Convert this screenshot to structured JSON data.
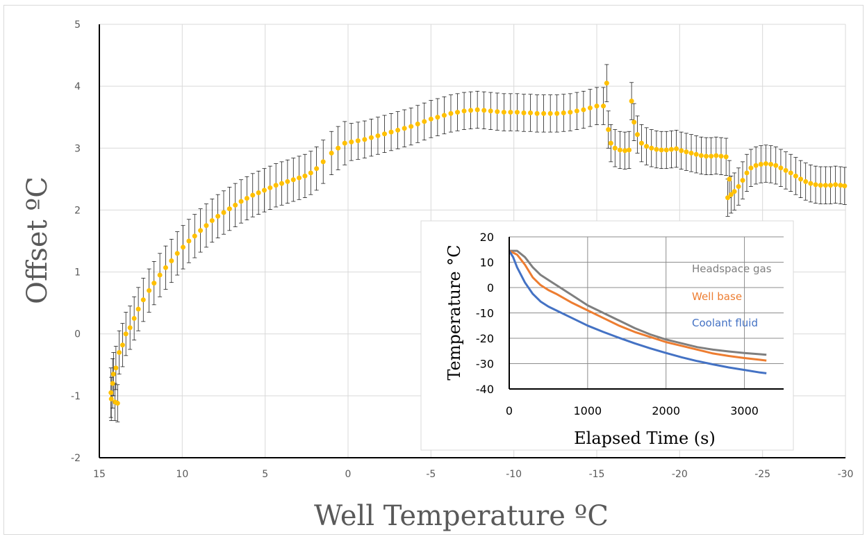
{
  "chart_data": [
    {
      "type": "scatter",
      "xlabel": "Well Temperature ºC",
      "ylabel": "Offset ºC",
      "xlim": [
        15,
        -30
      ],
      "ylim": [
        -2,
        5
      ],
      "x_ticks": [
        "15",
        "10",
        "5",
        "0",
        "-5",
        "-10",
        "-15",
        "-20",
        "-25",
        "-30"
      ],
      "y_ticks": [
        "5",
        "4",
        "3",
        "2",
        "1",
        "0",
        "-1",
        "-2"
      ],
      "grid": true,
      "colors": {
        "marker": "#ffc000",
        "error_bar": "#000000",
        "grid": "#d9d9d9"
      },
      "series": [
        {
          "points": [
            [
              14.3,
              -0.95,
              0.4
            ],
            [
              14.28,
              -1.05,
              0.35
            ],
            [
              14.2,
              -0.8,
              0.4
            ],
            [
              14.15,
              -0.65,
              0.35
            ],
            [
              14.05,
              -1.1,
              0.3
            ],
            [
              14.0,
              -0.55,
              0.35
            ],
            [
              13.9,
              -1.12,
              0.3
            ],
            [
              13.8,
              -0.3,
              0.35
            ],
            [
              13.6,
              -0.18,
              0.35
            ],
            [
              13.4,
              0.0,
              0.35
            ],
            [
              13.15,
              0.1,
              0.35
            ],
            [
              12.9,
              0.25,
              0.35
            ],
            [
              12.65,
              0.4,
              0.35
            ],
            [
              12.35,
              0.55,
              0.35
            ],
            [
              12.0,
              0.7,
              0.35
            ],
            [
              11.7,
              0.82,
              0.35
            ],
            [
              11.35,
              0.95,
              0.35
            ],
            [
              11.0,
              1.07,
              0.35
            ],
            [
              10.65,
              1.18,
              0.35
            ],
            [
              10.3,
              1.3,
              0.35
            ],
            [
              9.95,
              1.4,
              0.35
            ],
            [
              9.6,
              1.5,
              0.35
            ],
            [
              9.25,
              1.58,
              0.35
            ],
            [
              8.9,
              1.67,
              0.35
            ],
            [
              8.55,
              1.75,
              0.35
            ],
            [
              8.2,
              1.83,
              0.35
            ],
            [
              7.85,
              1.9,
              0.35
            ],
            [
              7.5,
              1.96,
              0.35
            ],
            [
              7.15,
              2.02,
              0.35
            ],
            [
              6.8,
              2.08,
              0.35
            ],
            [
              6.45,
              2.14,
              0.35
            ],
            [
              6.1,
              2.19,
              0.35
            ],
            [
              5.75,
              2.24,
              0.35
            ],
            [
              5.4,
              2.28,
              0.35
            ],
            [
              5.05,
              2.32,
              0.35
            ],
            [
              4.7,
              2.36,
              0.35
            ],
            [
              4.35,
              2.4,
              0.35
            ],
            [
              4.0,
              2.43,
              0.35
            ],
            [
              3.65,
              2.46,
              0.35
            ],
            [
              3.3,
              2.49,
              0.35
            ],
            [
              2.95,
              2.52,
              0.35
            ],
            [
              2.6,
              2.55,
              0.35
            ],
            [
              2.25,
              2.6,
              0.35
            ],
            [
              1.9,
              2.67,
              0.35
            ],
            [
              1.5,
              2.78,
              0.35
            ],
            [
              1.0,
              2.92,
              0.35
            ],
            [
              0.6,
              3.0,
              0.35
            ],
            [
              0.2,
              3.08,
              0.35
            ],
            [
              -0.2,
              3.1,
              0.3
            ],
            [
              -0.6,
              3.12,
              0.3
            ],
            [
              -1.0,
              3.14,
              0.3
            ],
            [
              -1.4,
              3.17,
              0.3
            ],
            [
              -1.8,
              3.2,
              0.3
            ],
            [
              -2.2,
              3.23,
              0.3
            ],
            [
              -2.6,
              3.26,
              0.3
            ],
            [
              -3.0,
              3.29,
              0.3
            ],
            [
              -3.4,
              3.32,
              0.3
            ],
            [
              -3.8,
              3.35,
              0.3
            ],
            [
              -4.2,
              3.39,
              0.3
            ],
            [
              -4.6,
              3.43,
              0.3
            ],
            [
              -5.0,
              3.47,
              0.3
            ],
            [
              -5.4,
              3.5,
              0.3
            ],
            [
              -5.8,
              3.53,
              0.3
            ],
            [
              -6.2,
              3.56,
              0.3
            ],
            [
              -6.6,
              3.58,
              0.3
            ],
            [
              -7.0,
              3.6,
              0.3
            ],
            [
              -7.4,
              3.61,
              0.3
            ],
            [
              -7.8,
              3.62,
              0.3
            ],
            [
              -8.2,
              3.61,
              0.3
            ],
            [
              -8.6,
              3.6,
              0.3
            ],
            [
              -9.0,
              3.59,
              0.3
            ],
            [
              -9.4,
              3.58,
              0.3
            ],
            [
              -9.8,
              3.58,
              0.3
            ],
            [
              -10.2,
              3.58,
              0.3
            ],
            [
              -10.6,
              3.57,
              0.3
            ],
            [
              -11.0,
              3.57,
              0.3
            ],
            [
              -11.4,
              3.56,
              0.3
            ],
            [
              -11.8,
              3.56,
              0.3
            ],
            [
              -12.2,
              3.56,
              0.3
            ],
            [
              -12.6,
              3.56,
              0.3
            ],
            [
              -13.0,
              3.57,
              0.3
            ],
            [
              -13.4,
              3.58,
              0.3
            ],
            [
              -13.8,
              3.6,
              0.3
            ],
            [
              -14.2,
              3.62,
              0.3
            ],
            [
              -14.6,
              3.65,
              0.3
            ],
            [
              -15.0,
              3.68,
              0.3
            ],
            [
              -15.4,
              3.68,
              0.3
            ],
            [
              -15.6,
              4.05,
              0.3
            ],
            [
              -15.7,
              3.3,
              0.3
            ],
            [
              -15.85,
              3.08,
              0.3
            ],
            [
              -16.1,
              3.0,
              0.3
            ],
            [
              -16.4,
              2.97,
              0.3
            ],
            [
              -16.7,
              2.96,
              0.3
            ],
            [
              -16.95,
              2.97,
              0.3
            ],
            [
              -17.1,
              3.76,
              0.3
            ],
            [
              -17.25,
              3.42,
              0.3
            ],
            [
              -17.45,
              3.22,
              0.3
            ],
            [
              -17.7,
              3.08,
              0.3
            ],
            [
              -18.0,
              3.03,
              0.3
            ],
            [
              -18.3,
              3.0,
              0.3
            ],
            [
              -18.6,
              2.98,
              0.3
            ],
            [
              -18.9,
              2.97,
              0.3
            ],
            [
              -19.2,
              2.97,
              0.3
            ],
            [
              -19.5,
              2.98,
              0.3
            ],
            [
              -19.8,
              2.99,
              0.3
            ],
            [
              -20.1,
              2.96,
              0.3
            ],
            [
              -20.4,
              2.94,
              0.3
            ],
            [
              -20.7,
              2.92,
              0.3
            ],
            [
              -21.0,
              2.9,
              0.3
            ],
            [
              -21.3,
              2.88,
              0.3
            ],
            [
              -21.6,
              2.87,
              0.3
            ],
            [
              -21.9,
              2.87,
              0.3
            ],
            [
              -22.2,
              2.88,
              0.3
            ],
            [
              -22.5,
              2.87,
              0.3
            ],
            [
              -22.8,
              2.86,
              0.3
            ],
            [
              -22.9,
              2.2,
              0.3
            ],
            [
              -23.0,
              2.5,
              0.3
            ],
            [
              -23.1,
              2.25,
              0.3
            ],
            [
              -23.3,
              2.3,
              0.3
            ],
            [
              -23.55,
              2.38,
              0.3
            ],
            [
              -23.8,
              2.48,
              0.3
            ],
            [
              -24.05,
              2.6,
              0.3
            ],
            [
              -24.3,
              2.68,
              0.3
            ],
            [
              -24.6,
              2.72,
              0.3
            ],
            [
              -24.9,
              2.74,
              0.3
            ],
            [
              -25.2,
              2.75,
              0.3
            ],
            [
              -25.5,
              2.74,
              0.3
            ],
            [
              -25.8,
              2.72,
              0.3
            ],
            [
              -26.1,
              2.68,
              0.3
            ],
            [
              -26.4,
              2.64,
              0.3
            ],
            [
              -26.7,
              2.6,
              0.3
            ],
            [
              -27.0,
              2.55,
              0.3
            ],
            [
              -27.3,
              2.5,
              0.3
            ],
            [
              -27.6,
              2.46,
              0.3
            ],
            [
              -27.9,
              2.43,
              0.3
            ],
            [
              -28.2,
              2.41,
              0.3
            ],
            [
              -28.5,
              2.4,
              0.3
            ],
            [
              -28.8,
              2.4,
              0.3
            ],
            [
              -29.1,
              2.4,
              0.3
            ],
            [
              -29.4,
              2.41,
              0.3
            ],
            [
              -29.7,
              2.4,
              0.3
            ],
            [
              -29.95,
              2.39,
              0.3
            ]
          ]
        }
      ]
    },
    {
      "type": "line",
      "xlabel": "Elapsed Time (s)",
      "ylabel": "Temperature °C",
      "xlim": [
        0,
        3500
      ],
      "ylim": [
        -40,
        20
      ],
      "x_ticks": [
        "0",
        "1000",
        "2000",
        "3000"
      ],
      "y_ticks": [
        "20",
        "10",
        "0",
        "-10",
        "-20",
        "-30",
        "-40"
      ],
      "grid": true,
      "legend": "inline labels, top-right",
      "series": [
        {
          "name": "Headspace gas",
          "color": "#7f7f7f",
          "x": [
            0,
            100,
            200,
            300,
            400,
            500,
            600,
            800,
            1000,
            1200,
            1400,
            1600,
            1800,
            2000,
            2200,
            2400,
            2600,
            2800,
            3000,
            3200,
            3280
          ],
          "y": [
            14.5,
            14.5,
            12,
            8,
            5,
            3,
            1,
            -3,
            -7,
            -10,
            -13,
            -16,
            -18.5,
            -20.5,
            -22,
            -23.5,
            -24.5,
            -25.2,
            -25.8,
            -26.3,
            -26.5
          ]
        },
        {
          "name": "Well base",
          "color": "#ed7d31",
          "x": [
            0,
            100,
            200,
            300,
            400,
            500,
            600,
            800,
            1000,
            1200,
            1400,
            1600,
            1800,
            2000,
            2200,
            2400,
            2600,
            2800,
            3000,
            3200,
            3280
          ],
          "y": [
            14.5,
            13,
            9,
            4,
            1,
            -1,
            -2.5,
            -6,
            -9,
            -12,
            -15,
            -17.5,
            -19.5,
            -21.5,
            -23,
            -24.5,
            -26,
            -27,
            -27.8,
            -28.5,
            -28.8
          ]
        },
        {
          "name": "Coolant fluid",
          "color": "#4472c4",
          "x": [
            0,
            50,
            100,
            200,
            300,
            400,
            500,
            600,
            800,
            1000,
            1200,
            1400,
            1600,
            1800,
            2000,
            2200,
            2400,
            2600,
            2800,
            3000,
            3200,
            3280
          ],
          "y": [
            14.5,
            12,
            8,
            2,
            -2.5,
            -5.5,
            -7.5,
            -9,
            -12,
            -15,
            -17.5,
            -19.8,
            -22,
            -24,
            -25.8,
            -27.5,
            -29,
            -30.3,
            -31.5,
            -32.5,
            -33.5,
            -33.8
          ]
        }
      ]
    }
  ]
}
